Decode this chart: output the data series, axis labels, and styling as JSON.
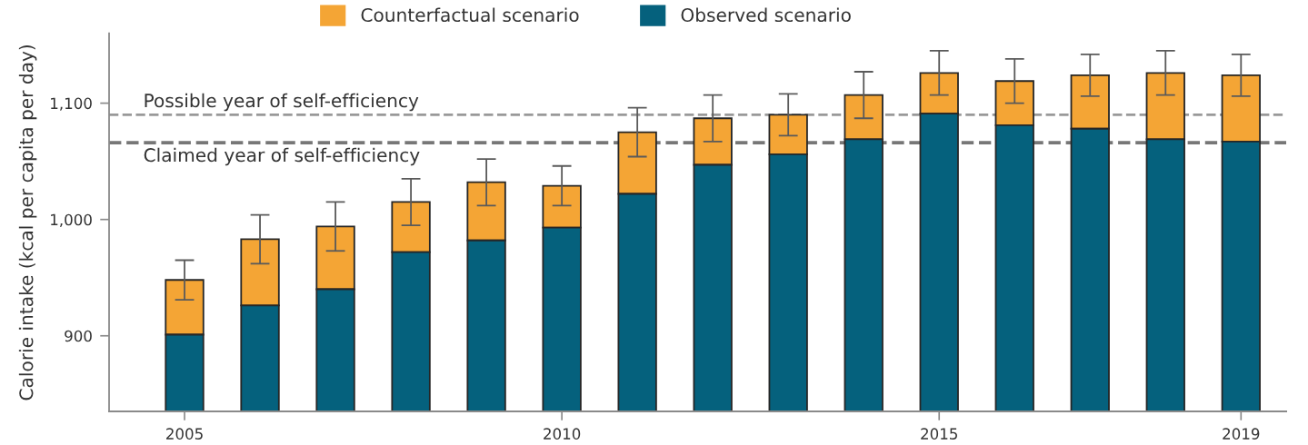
{
  "chart_data": {
    "type": "bar",
    "ylabel": "Calorie intake (kcal per capita per day)",
    "x": [
      2005,
      2006,
      2007,
      2008,
      2009,
      2010,
      2011,
      2012,
      2013,
      2014,
      2015,
      2016,
      2017,
      2018,
      2019
    ],
    "xlim": [
      2004,
      2019.6
    ],
    "xticks": [
      2005,
      2010,
      2015,
      2019
    ],
    "ylim": [
      835,
      1160
    ],
    "yticks": [
      900,
      {
        "value": 1000,
        "label": "1,000"
      },
      {
        "value": 1100,
        "label": "1,100"
      }
    ],
    "series": [
      {
        "name": "Counterfactual scenario",
        "color": "#f4a535",
        "base": [
          901,
          926,
          940,
          972,
          982,
          993,
          1022,
          1047,
          1056,
          1069,
          1091,
          1081,
          1078,
          1069,
          1067
        ],
        "values": [
          47,
          57,
          54,
          43,
          50,
          36,
          53,
          40,
          34,
          38,
          35,
          38,
          46,
          57,
          57
        ],
        "errors": [
          17,
          21,
          21,
          20,
          20,
          17,
          21,
          20,
          18,
          20,
          19,
          19,
          18,
          19,
          18
        ]
      },
      {
        "name": "Observed scenario",
        "color": "#05617d",
        "values": [
          901,
          926,
          940,
          972,
          982,
          993,
          1022,
          1047,
          1056,
          1069,
          1091,
          1081,
          1078,
          1069,
          1067
        ]
      }
    ],
    "ref_lines": [
      {
        "axis": "y",
        "value": 1090,
        "label": "Possible year of self-efficiency",
        "color": "#999999",
        "line_style": "dashed"
      },
      {
        "axis": "y",
        "value": 1066,
        "label": "Claimed year of self-efficiency",
        "color": "#777777",
        "line_style": "dashed"
      }
    ],
    "legend": "top"
  }
}
